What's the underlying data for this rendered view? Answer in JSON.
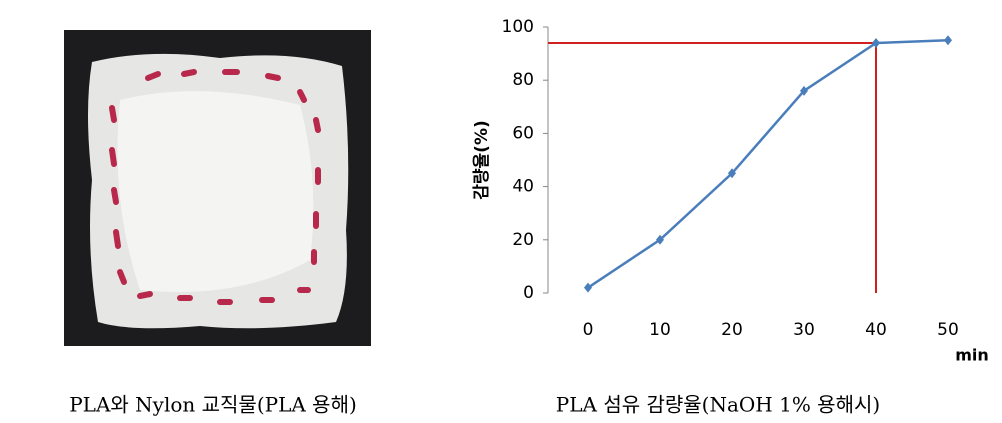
{
  "chart_data": {
    "type": "line",
    "x": [
      0,
      10,
      20,
      30,
      40,
      50
    ],
    "values": [
      2,
      20,
      45,
      76,
      94,
      95
    ],
    "color": "#4a7ebb",
    "ylabel": "감량율(%)",
    "xlabel": "min",
    "xlim": [
      -5,
      55
    ],
    "xticks": [
      0,
      10,
      20,
      30,
      40,
      50
    ],
    "ylim": [
      0,
      100
    ],
    "yticks": [
      0,
      20,
      40,
      60,
      80,
      100
    ],
    "reference": {
      "x": 40,
      "y": 94,
      "color": "#d02020"
    }
  },
  "captions": [
    "PLA와 Nylon 교직물(PLA 용해)",
    "PLA 섬유 감량율(NaOH 1% 용해시)"
  ]
}
